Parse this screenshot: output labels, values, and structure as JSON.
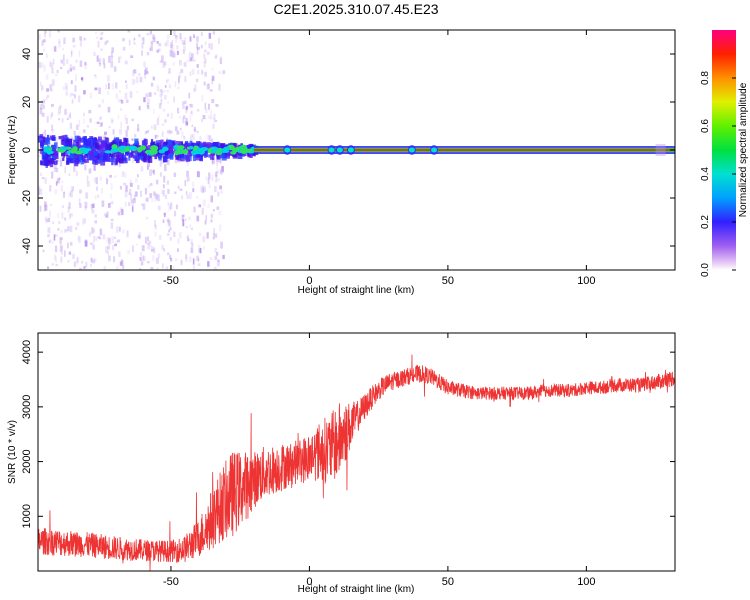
{
  "chart_data": [
    {
      "type": "heatmap",
      "title": "C2E1.2025.310.07.45.E23",
      "xlabel": "Height of straight line (km)",
      "ylabel": "Frequency (Hz)",
      "xlim": [
        -98,
        132
      ],
      "ylim": [
        -50,
        50
      ],
      "xticks": [
        -50,
        0,
        50,
        100
      ],
      "xtick_labels": [
        "-50",
        "0",
        "50",
        "100"
      ],
      "yticks": [
        -40,
        -20,
        0,
        20,
        40
      ],
      "ytick_labels": [
        "-40",
        "-20",
        "0",
        "20",
        "40"
      ],
      "colorbar": {
        "label": "Normalized spectral amplitude",
        "range": [
          0,
          1
        ],
        "ticks": [
          0.0,
          0.2,
          0.4,
          0.6,
          0.8
        ],
        "tick_labels": [
          "0.0",
          "0.2",
          "0.4",
          "0.6",
          "0.8"
        ]
      },
      "description_of_features": {
        "central_line_frequency_hz": 0,
        "noise_region_x_km": [
          -98,
          -35
        ],
        "broadband_band_halfwidth_hz": 6
      }
    },
    {
      "type": "line",
      "xlabel": "Height of straight line (km)",
      "ylabel": "SNR (10 * v/v)",
      "xlim": [
        -98,
        132
      ],
      "ylim": [
        0,
        4350
      ],
      "xticks": [
        -50,
        0,
        50,
        100
      ],
      "xtick_labels": [
        "-50",
        "0",
        "50",
        "100"
      ],
      "yticks": [
        1000,
        2000,
        3000,
        4000
      ],
      "ytick_labels": [
        "1000",
        "2000",
        "3000",
        "4000"
      ],
      "color": "#ee3333",
      "x": [
        -98,
        -90,
        -80,
        -70,
        -60,
        -50,
        -45,
        -40,
        -37,
        -34,
        -31,
        -28,
        -25,
        -22,
        -19,
        -16,
        -13,
        -10,
        -7,
        -4,
        -1,
        2,
        5,
        8,
        11,
        14,
        17,
        20,
        23,
        26,
        29,
        32,
        35,
        38,
        41,
        44,
        47,
        50,
        55,
        60,
        65,
        70,
        75,
        80,
        85,
        90,
        95,
        100,
        105,
        110,
        115,
        120,
        125,
        130,
        132
      ],
      "y": [
        550,
        520,
        480,
        420,
        380,
        360,
        400,
        600,
        800,
        1050,
        1250,
        1400,
        1500,
        1600,
        1700,
        1800,
        1850,
        1900,
        1950,
        2000,
        2050,
        2150,
        2200,
        2250,
        2400,
        2600,
        2800,
        3000,
        3200,
        3350,
        3450,
        3500,
        3550,
        3600,
        3600,
        3550,
        3450,
        3350,
        3300,
        3250,
        3250,
        3250,
        3250,
        3250,
        3300,
        3300,
        3300,
        3350,
        3350,
        3400,
        3400,
        3400,
        3450,
        3500,
        3550
      ],
      "noise_amplitude": [
        250,
        250,
        230,
        220,
        200,
        200,
        250,
        350,
        500,
        600,
        700,
        800,
        700,
        600,
        500,
        500,
        450,
        450,
        400,
        400,
        450,
        500,
        600,
        650,
        700,
        500,
        300,
        250,
        200,
        180,
        170,
        160,
        160,
        160,
        160,
        150,
        150,
        140,
        130,
        120,
        120,
        120,
        120,
        120,
        120,
        120,
        120,
        120,
        120,
        130,
        130,
        130,
        140,
        150,
        150
      ]
    }
  ]
}
